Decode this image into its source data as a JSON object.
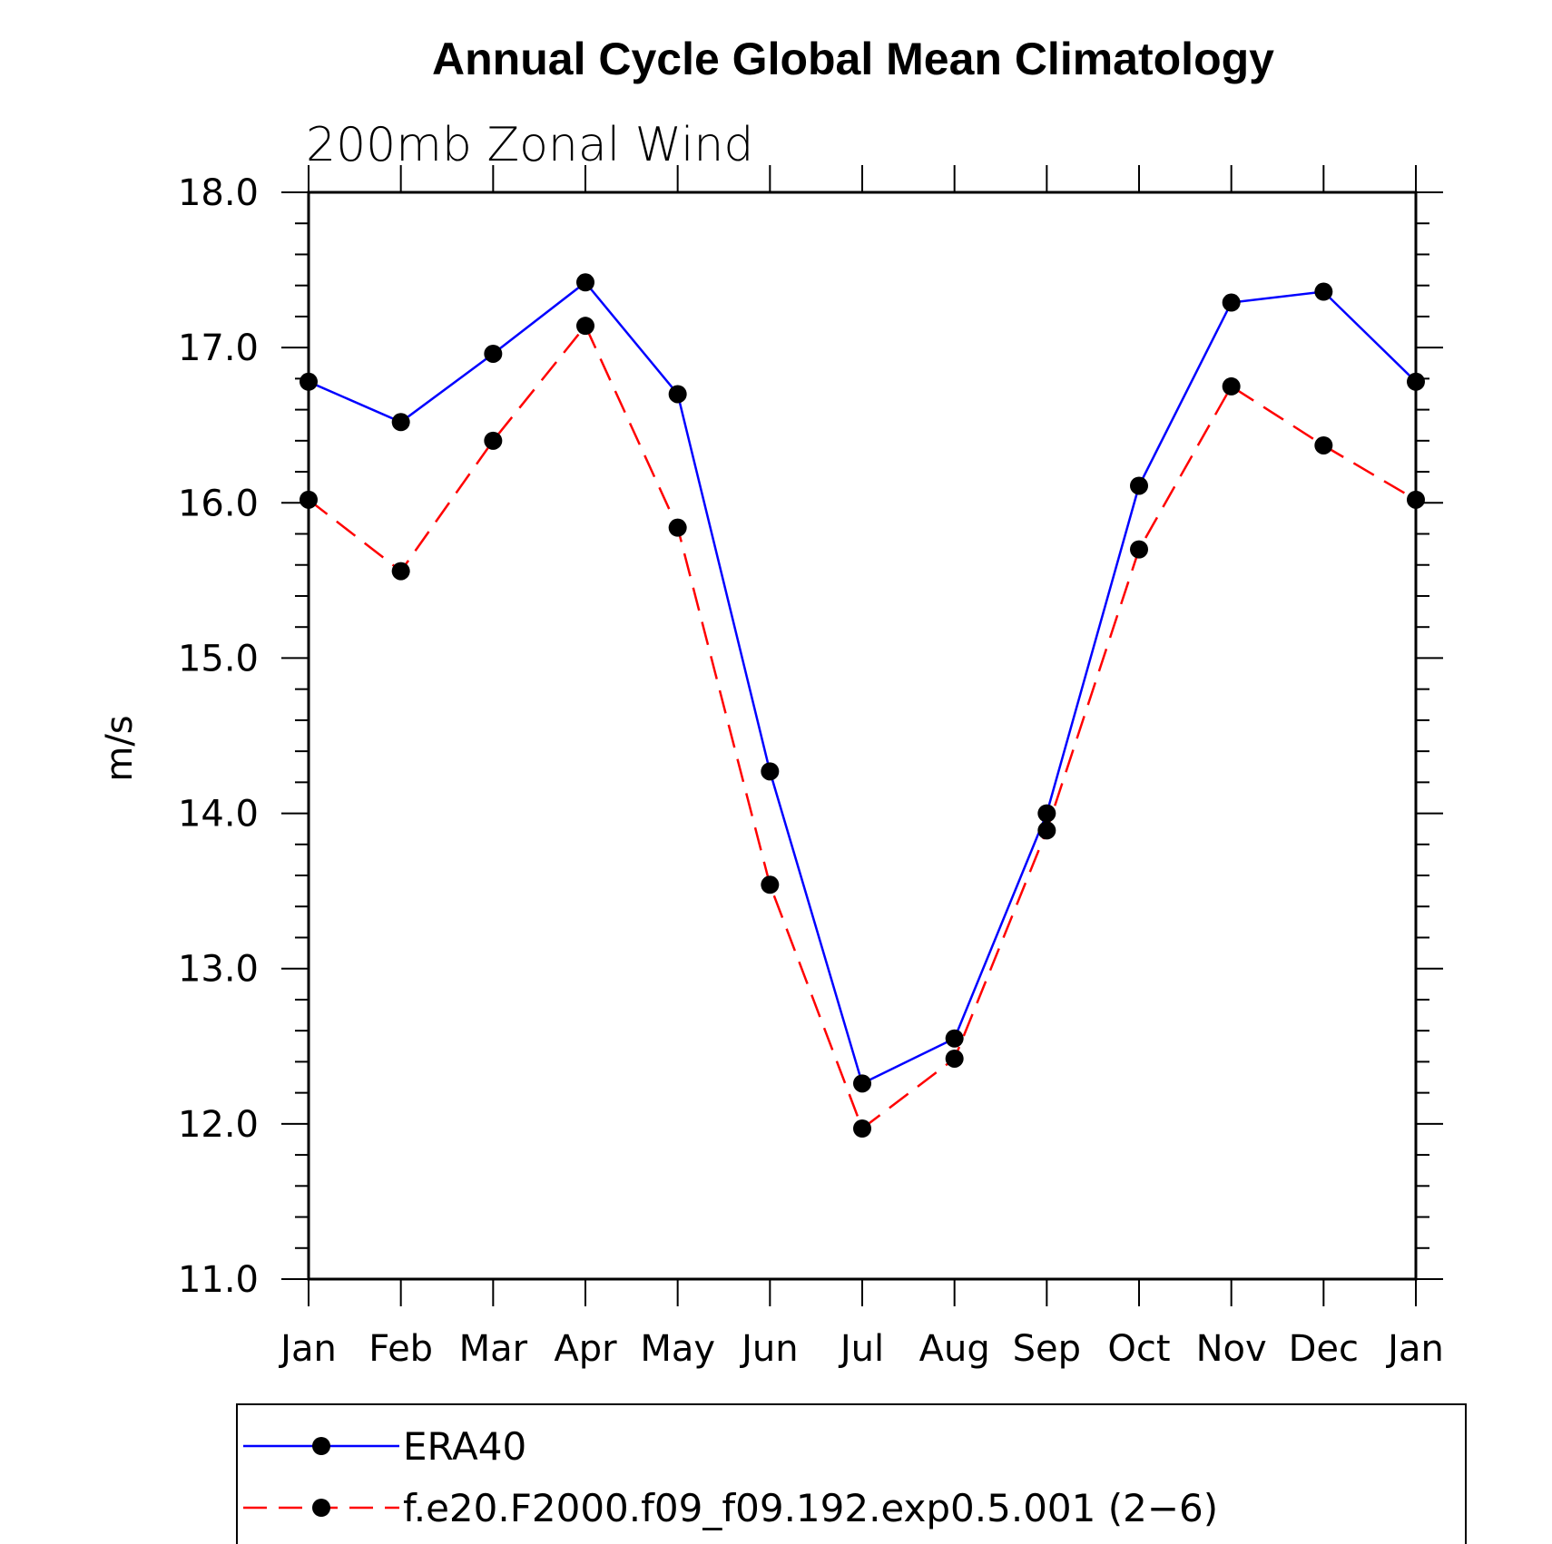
{
  "chart_data": {
    "type": "line",
    "title": "Annual Cycle Global Mean Climatology",
    "subtitle": "200mb Zonal Wind",
    "ylabel": "m/s",
    "xlabel": "",
    "categories": [
      "Jan",
      "Feb",
      "Mar",
      "Apr",
      "May",
      "Jun",
      "Jul",
      "Aug",
      "Sep",
      "Oct",
      "Nov",
      "Dec",
      "Jan"
    ],
    "ylim": [
      11.0,
      18.0
    ],
    "yticks": [
      "11.0",
      "12.0",
      "13.0",
      "14.0",
      "15.0",
      "16.0",
      "17.0",
      "18.0"
    ],
    "grid": false,
    "legend_position": "bottom",
    "series": [
      {
        "name": "ERA40",
        "color": "#0000ff",
        "line_style": "solid",
        "marker": "filled-circle",
        "values": [
          16.78,
          16.52,
          16.96,
          17.42,
          16.7,
          14.27,
          12.26,
          12.55,
          14.0,
          16.11,
          17.29,
          17.36,
          16.78
        ]
      },
      {
        "name": "f.e20.F2000.f09_f09.192.exp0.5.001 (2−6)",
        "color": "#ff0000",
        "line_style": "dashed",
        "marker": "filled-circle",
        "values": [
          16.02,
          15.56,
          16.4,
          17.14,
          15.84,
          13.54,
          11.97,
          12.42,
          13.89,
          15.7,
          16.75,
          16.37,
          16.02
        ]
      }
    ]
  }
}
